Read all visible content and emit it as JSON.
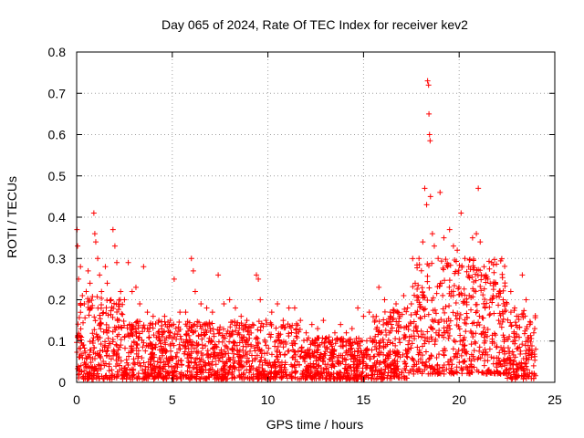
{
  "chart_data": {
    "type": "scatter",
    "title": "Day 065 of 2024, Rate Of TEC Index for receiver kev2",
    "xlabel": "GPS time / hours",
    "ylabel": "ROTI / TECUs",
    "xlim": [
      0,
      25
    ],
    "ylim": [
      0,
      0.8
    ],
    "x_ticks": [
      "0",
      "5",
      "10",
      "15",
      "20",
      "25"
    ],
    "y_ticks": [
      "0",
      "0.1",
      "0.2",
      "0.3",
      "0.4",
      "0.5",
      "0.6",
      "0.7",
      "0.8"
    ],
    "grid": true,
    "marker": "+",
    "marker_color": "#ff0000",
    "series": [
      {
        "points": [
          [
            0.02,
            0.37
          ],
          [
            0.05,
            0.33
          ],
          [
            0.1,
            0.25
          ],
          [
            0.2,
            0.28
          ],
          [
            0.3,
            0.21
          ],
          [
            0.4,
            0.19
          ],
          [
            0.5,
            0.22
          ],
          [
            0.6,
            0.27
          ],
          [
            0.7,
            0.24
          ],
          [
            0.8,
            0.18
          ],
          [
            0.9,
            0.41
          ],
          [
            0.95,
            0.36
          ],
          [
            1.0,
            0.34
          ],
          [
            1.1,
            0.3
          ],
          [
            1.2,
            0.26
          ],
          [
            1.3,
            0.22
          ],
          [
            1.5,
            0.28
          ],
          [
            1.6,
            0.24
          ],
          [
            1.8,
            0.2
          ],
          [
            1.9,
            0.37
          ],
          [
            2.0,
            0.33
          ],
          [
            2.1,
            0.29
          ],
          [
            2.3,
            0.22
          ],
          [
            2.5,
            0.2
          ],
          [
            2.7,
            0.29
          ],
          [
            2.9,
            0.22
          ],
          [
            3.1,
            0.23
          ],
          [
            3.3,
            0.19
          ],
          [
            3.5,
            0.28
          ],
          [
            3.7,
            0.17
          ],
          [
            4.0,
            0.16
          ],
          [
            4.3,
            0.15
          ],
          [
            4.6,
            0.16
          ],
          [
            4.9,
            0.15
          ],
          [
            5.1,
            0.25
          ],
          [
            5.4,
            0.17
          ],
          [
            5.7,
            0.17
          ],
          [
            6.0,
            0.3
          ],
          [
            6.1,
            0.27
          ],
          [
            6.2,
            0.22
          ],
          [
            6.5,
            0.19
          ],
          [
            6.8,
            0.18
          ],
          [
            7.1,
            0.17
          ],
          [
            7.4,
            0.26
          ],
          [
            7.7,
            0.19
          ],
          [
            8.0,
            0.2
          ],
          [
            8.3,
            0.18
          ],
          [
            8.6,
            0.16
          ],
          [
            8.9,
            0.15
          ],
          [
            9.2,
            0.14
          ],
          [
            9.4,
            0.26
          ],
          [
            9.5,
            0.25
          ],
          [
            9.6,
            0.2
          ],
          [
            9.9,
            0.15
          ],
          [
            10.2,
            0.17
          ],
          [
            10.5,
            0.19
          ],
          [
            10.8,
            0.15
          ],
          [
            11.1,
            0.18
          ],
          [
            11.4,
            0.18
          ],
          [
            11.7,
            0.15
          ],
          [
            12.0,
            0.12
          ],
          [
            12.3,
            0.14
          ],
          [
            12.6,
            0.13
          ],
          [
            12.9,
            0.15
          ],
          [
            13.2,
            0.11
          ],
          [
            13.5,
            0.12
          ],
          [
            13.8,
            0.14
          ],
          [
            14.1,
            0.12
          ],
          [
            14.4,
            0.13
          ],
          [
            14.7,
            0.18
          ],
          [
            15.0,
            0.16
          ],
          [
            15.3,
            0.17
          ],
          [
            15.6,
            0.15
          ],
          [
            15.8,
            0.23
          ],
          [
            16.1,
            0.2
          ],
          [
            16.4,
            0.17
          ],
          [
            16.7,
            0.19
          ],
          [
            16.9,
            0.16
          ],
          [
            17.1,
            0.21
          ],
          [
            17.3,
            0.18
          ],
          [
            17.5,
            0.19
          ],
          [
            17.7,
            0.24
          ],
          [
            17.9,
            0.3
          ],
          [
            18.1,
            0.34
          ],
          [
            18.2,
            0.47
          ],
          [
            18.3,
            0.43
          ],
          [
            18.35,
            0.73
          ],
          [
            18.4,
            0.72
          ],
          [
            18.42,
            0.65
          ],
          [
            18.45,
            0.6
          ],
          [
            18.48,
            0.585
          ],
          [
            18.5,
            0.45
          ],
          [
            18.6,
            0.36
          ],
          [
            18.7,
            0.33
          ],
          [
            18.9,
            0.3
          ],
          [
            19.0,
            0.46
          ],
          [
            19.2,
            0.35
          ],
          [
            19.4,
            0.28
          ],
          [
            19.5,
            0.37
          ],
          [
            19.7,
            0.33
          ],
          [
            19.9,
            0.32
          ],
          [
            20.1,
            0.41
          ],
          [
            20.3,
            0.3
          ],
          [
            20.5,
            0.28
          ],
          [
            20.7,
            0.35
          ],
          [
            20.9,
            0.36
          ],
          [
            21.0,
            0.47
          ],
          [
            21.1,
            0.34
          ],
          [
            21.3,
            0.28
          ],
          [
            21.5,
            0.25
          ],
          [
            21.7,
            0.29
          ],
          [
            21.9,
            0.24
          ],
          [
            22.1,
            0.22
          ],
          [
            22.3,
            0.2
          ],
          [
            22.5,
            0.19
          ],
          [
            22.7,
            0.22
          ],
          [
            22.9,
            0.18
          ],
          [
            23.1,
            0.16
          ],
          [
            23.3,
            0.26
          ],
          [
            23.5,
            0.2
          ],
          [
            23.7,
            0.14
          ],
          [
            23.9,
            0.12
          ],
          [
            24.0,
            0.08
          ]
        ]
      }
    ],
    "background_cloud": "dense ROTI cloud 0.01-0.15 TECUs across 0-24 h, elevated 0.05-0.3 between 17.5 and 22.5 h"
  }
}
